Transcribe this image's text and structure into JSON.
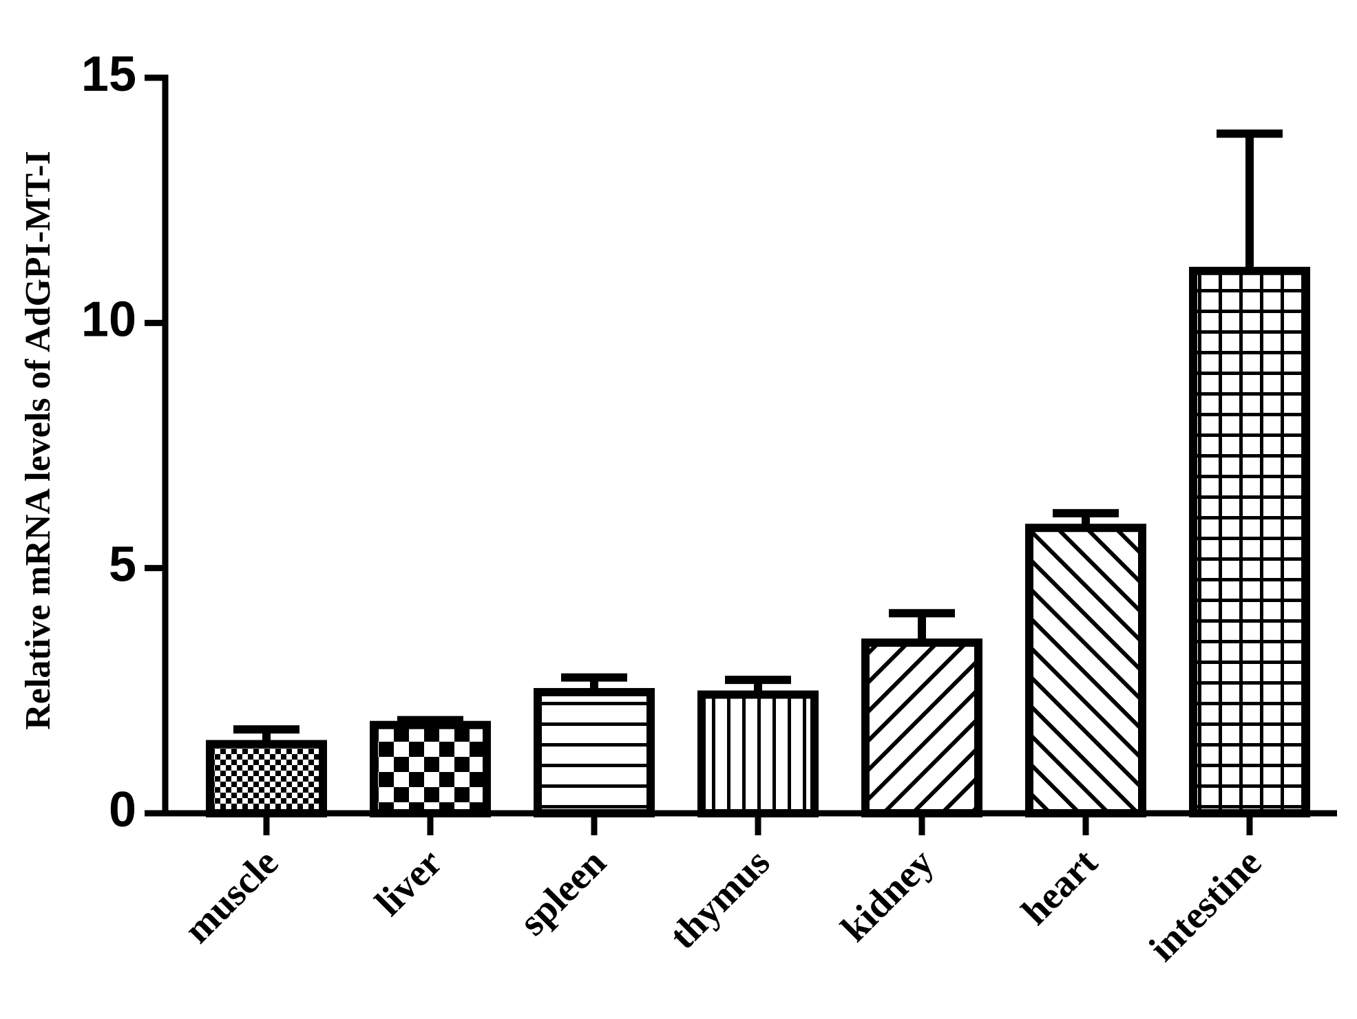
{
  "chart_data": {
    "type": "bar",
    "y_label": "Relative mRNA levels of AdGPI-MT-I",
    "categories": [
      "muscle",
      "liver",
      "spleen",
      "thymus",
      "kidney",
      "heart",
      "intestine"
    ],
    "values": [
      1.41,
      1.8,
      2.47,
      2.42,
      3.48,
      5.82,
      11.06
    ],
    "errors": [
      0.3,
      0.1,
      0.3,
      0.3,
      0.6,
      0.3,
      2.8
    ],
    "patterns": [
      "checker-small",
      "checker-large",
      "horizontal",
      "vertical",
      "diagonal-up",
      "diagonal-down",
      "grid"
    ],
    "color": "#000000",
    "ylim": [
      0,
      15
    ],
    "yticks": [
      0,
      5,
      10,
      15
    ],
    "grid": false
  }
}
